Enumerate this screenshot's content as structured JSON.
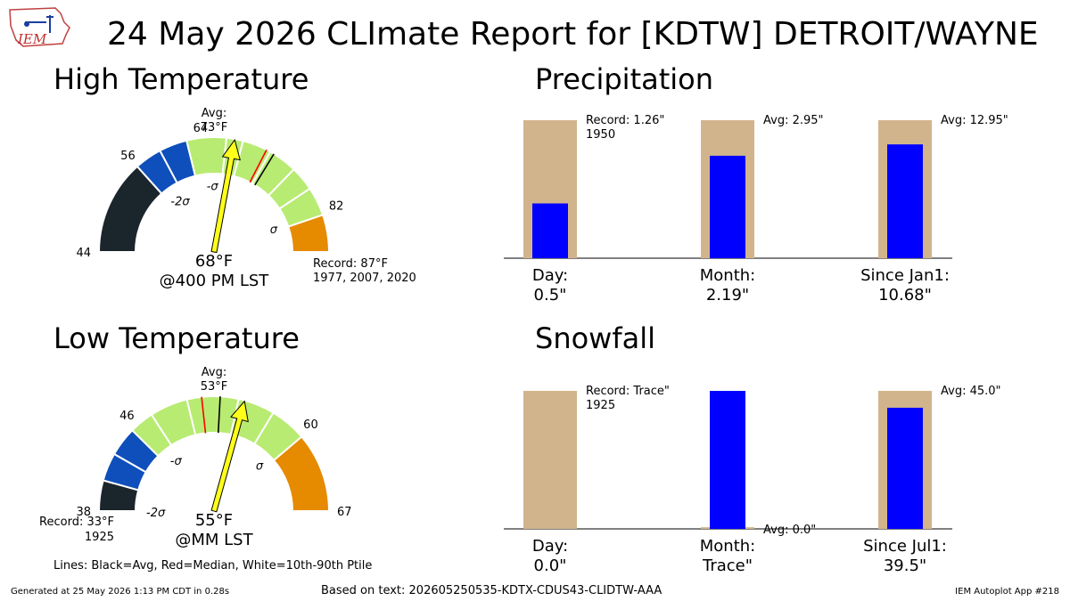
{
  "header": {
    "title": "24 May 2026 CLImate Report for [KDTW] DETROIT/WAYNE",
    "logo_text": "IEM"
  },
  "footer": {
    "lines_note": "Lines: Black=Avg, Red=Median, White=10th-90th Ptile",
    "generated": "Generated at 25 May 2026 1:13 PM CDT in 0.28s",
    "based_on": "Based on text: 202605250535-KDTX-CDUS43-CLIDTW-AAA",
    "app": "IEM Autoplot App #218"
  },
  "colors": {
    "band_darkest": "#1b262c",
    "band_blue": "#0f4fbb",
    "band_green": "#b8eb72",
    "band_orange": "#e68a00",
    "needle": "#ffff1a",
    "bar_background": "#d2b48c",
    "bar_observed": "#0000ff"
  },
  "chart_data": [
    {
      "type": "gauge",
      "title": "High Temperature",
      "unit": "°F",
      "range": [
        44,
        87
      ],
      "ticks": [
        44,
        56,
        64,
        82
      ],
      "band_edges": [
        44,
        55.5,
        58.8,
        62.2,
        67,
        69,
        72.5,
        76,
        79,
        82.5,
        87
      ],
      "band_colors": [
        "band_darkest",
        "band_blue",
        "band_blue",
        "band_green",
        "band_green",
        "band_green",
        "band_green",
        "band_green",
        "band_green",
        "band_orange"
      ],
      "sigma_labels": [
        {
          "text": "-2σ",
          "value": 56
        },
        {
          "text": "-σ",
          "value": 64
        },
        {
          "text": "σ",
          "value": 82
        }
      ],
      "avg": 73,
      "median": 72,
      "avg_label": [
        "Avg:",
        "73°F"
      ],
      "observed": 68,
      "observed_label": "68°F",
      "time_label": "@400 PM LST",
      "record_text": [
        "Record: 87°F",
        "1977, 2007, 2020"
      ]
    },
    {
      "type": "gauge",
      "title": "Low Temperature",
      "unit": "°F",
      "range": [
        38,
        67
      ],
      "ticks": [
        38,
        46,
        60,
        67
      ],
      "band_edges": [
        38,
        40.5,
        42.8,
        45.2,
        47.2,
        50.3,
        54.5,
        57.5,
        60.5,
        67
      ],
      "band_colors": [
        "band_darkest",
        "band_blue",
        "band_blue",
        "band_green",
        "band_green",
        "band_green",
        "band_green",
        "band_green",
        "band_orange"
      ],
      "sigma_labels": [
        {
          "text": "-2σ",
          "value": 38
        },
        {
          "text": "-σ",
          "value": 46
        },
        {
          "text": "σ",
          "value": 60
        }
      ],
      "avg": 53,
      "median": 51.5,
      "avg_label": [
        "Avg:",
        "53°F"
      ],
      "observed": 55,
      "observed_label": "55°F",
      "time_label": "@MM LST",
      "record_text": [
        "Record: 33°F",
        "1925"
      ]
    },
    {
      "type": "bar",
      "title": "Precipitation",
      "categories": [
        "Day:",
        "Month:",
        "Since Jan1:"
      ],
      "observed_labels": [
        "0.5\"",
        "2.19\"",
        "10.68\""
      ],
      "observed": [
        0.5,
        2.19,
        10.68
      ],
      "background": [
        1.26,
        2.95,
        12.95
      ],
      "annotations": [
        [
          "Record: 1.26\"",
          "1950"
        ],
        [
          "Avg: 2.95\""
        ],
        [
          "Avg: 12.95\""
        ]
      ]
    },
    {
      "type": "bar",
      "title": "Snowfall",
      "categories": [
        "Day:",
        "Month:",
        "Since Jul1:"
      ],
      "observed_labels": [
        "0.0\"",
        "Trace\"",
        "39.5\""
      ],
      "observed": [
        0.0,
        0.0001,
        39.5
      ],
      "background": [
        0.0001,
        0.0,
        45.0
      ],
      "annotations": [
        [
          "Record: Trace\"",
          "1925"
        ],
        [
          "Avg: 0.0\""
        ],
        [
          "Avg: 45.0\""
        ]
      ]
    }
  ]
}
